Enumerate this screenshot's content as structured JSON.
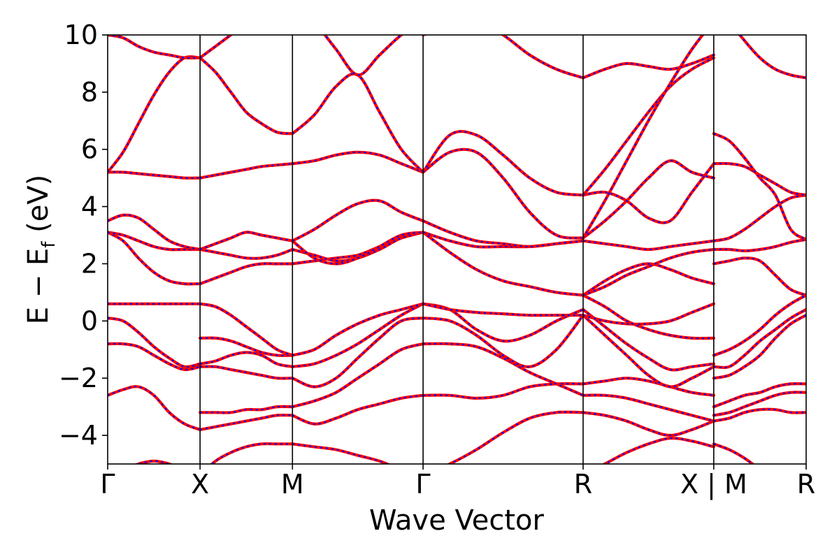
{
  "chart_data": {
    "type": "line",
    "title": "",
    "xlabel": "Wave Vector",
    "ylabel": "E − E",
    "ylabel_subscript": "f",
    "ylabel_unit": " (eV)",
    "ylim": [
      -5,
      10
    ],
    "yticks": [
      10,
      8,
      6,
      4,
      2,
      0,
      -2,
      -4
    ],
    "ytick_labels": [
      "10",
      "8",
      "6",
      "4",
      "2",
      "0",
      "−2",
      "−4"
    ],
    "kpath": [
      {
        "label": "Γ",
        "pos": 0
      },
      {
        "label": "X",
        "pos": 1.0
      },
      {
        "label": "M",
        "pos": 2.0
      },
      {
        "label": "Γ",
        "pos": 3.414
      },
      {
        "label": "R",
        "pos": 5.146
      },
      {
        "label": "X | M",
        "pos": 6.56
      },
      {
        "label": "R",
        "pos": 7.56
      }
    ],
    "grid": false,
    "legend": "none",
    "series_styles": [
      {
        "color": "#ff0000",
        "style": "solid"
      },
      {
        "color": "#0000ff",
        "style": "dashed"
      }
    ],
    "segments": [
      {
        "name": "Γ–X",
        "bands": [
          [
            -5.4,
            -5.2,
            -5.0,
            -4.9,
            -5.0,
            -5.2,
            -5.4
          ],
          [
            -2.6,
            -2.4,
            -2.3,
            -2.6,
            -3.2,
            -3.6,
            -3.8
          ],
          [
            -0.8,
            -0.8,
            -0.9,
            -1.2,
            -1.5,
            -1.7,
            -1.6
          ],
          [
            0.1,
            0.0,
            -0.4,
            -0.9,
            -1.3,
            -1.6,
            -1.5
          ],
          [
            0.6,
            0.6,
            0.6,
            0.6,
            0.6,
            0.6,
            0.6
          ],
          [
            3.1,
            2.8,
            2.2,
            1.7,
            1.4,
            1.3,
            1.3
          ],
          [
            3.1,
            3.0,
            2.8,
            2.6,
            2.5,
            2.5,
            2.5
          ],
          [
            3.5,
            3.7,
            3.6,
            3.2,
            2.8,
            2.6,
            2.5
          ],
          [
            5.2,
            5.2,
            5.15,
            5.1,
            5.05,
            5.0,
            5.0
          ],
          [
            5.2,
            5.9,
            6.9,
            7.9,
            8.7,
            9.2,
            9.2
          ],
          [
            10.0,
            9.9,
            9.6,
            9.4,
            9.3,
            9.2,
            9.2
          ]
        ]
      },
      {
        "name": "X–M",
        "bands": [
          [
            -5.4,
            -4.9,
            -4.6,
            -4.4,
            -4.3,
            -4.3,
            -4.3
          ],
          [
            -3.8,
            -3.7,
            -3.6,
            -3.5,
            -3.4,
            -3.3,
            -3.3
          ],
          [
            -3.2,
            -3.2,
            -3.2,
            -3.1,
            -3.1,
            -3.0,
            -3.0
          ],
          [
            -1.6,
            -1.6,
            -1.7,
            -1.8,
            -1.9,
            -2.0,
            -2.0
          ],
          [
            -1.5,
            -1.4,
            -1.2,
            -1.1,
            -1.2,
            -1.5,
            -1.6
          ],
          [
            -0.6,
            -0.6,
            -0.7,
            -0.9,
            -1.1,
            -1.2,
            -1.2
          ],
          [
            0.6,
            0.5,
            0.2,
            -0.2,
            -0.6,
            -1.0,
            -1.2
          ],
          [
            1.3,
            1.5,
            1.7,
            1.9,
            2.0,
            2.0,
            2.0
          ],
          [
            2.5,
            2.4,
            2.3,
            2.2,
            2.2,
            2.3,
            2.5
          ],
          [
            2.5,
            2.7,
            2.9,
            3.1,
            3.0,
            2.9,
            2.8
          ],
          [
            5.0,
            5.1,
            5.2,
            5.3,
            5.4,
            5.45,
            5.5
          ],
          [
            9.2,
            8.7,
            8.0,
            7.3,
            6.9,
            6.6,
            6.55
          ],
          [
            9.2,
            9.6,
            10.0,
            10.4,
            10.8,
            11.2,
            11.5
          ]
        ]
      },
      {
        "name": "M–Γ",
        "bands": [
          [
            -4.3,
            -4.4,
            -4.5,
            -4.7,
            -4.9,
            -5.2,
            -5.4
          ],
          [
            -3.3,
            -3.6,
            -3.4,
            -3.1,
            -2.9,
            -2.7,
            -2.6
          ],
          [
            -3.0,
            -2.8,
            -2.5,
            -2.0,
            -1.5,
            -1.0,
            -0.8
          ],
          [
            -2.0,
            -2.3,
            -2.0,
            -1.3,
            -0.6,
            0.0,
            0.1
          ],
          [
            -1.6,
            -1.5,
            -1.2,
            -0.8,
            -0.3,
            0.2,
            0.6
          ],
          [
            -1.2,
            -1.0,
            -0.5,
            -0.1,
            0.2,
            0.4,
            0.6
          ],
          [
            2.0,
            2.1,
            2.2,
            2.3,
            2.6,
            2.9,
            3.1
          ],
          [
            2.5,
            2.3,
            2.1,
            2.2,
            2.5,
            2.9,
            3.1
          ],
          [
            2.8,
            2.2,
            2.0,
            2.2,
            2.6,
            3.0,
            3.1
          ],
          [
            2.8,
            3.2,
            3.7,
            4.1,
            4.2,
            3.8,
            3.5
          ],
          [
            5.5,
            5.6,
            5.8,
            5.9,
            5.8,
            5.5,
            5.2
          ],
          [
            6.55,
            7.2,
            8.2,
            8.6,
            7.3,
            6.0,
            5.2
          ],
          [
            11.5,
            10.5,
            9.5,
            8.6,
            9.3,
            10.0,
            10.5
          ]
        ]
      },
      {
        "name": "Γ–R",
        "bands": [
          [
            -5.4,
            -5.0,
            -4.5,
            -3.9,
            -3.4,
            -3.2,
            -3.2
          ],
          [
            -2.6,
            -2.6,
            -2.7,
            -2.6,
            -2.3,
            -2.2,
            -2.2
          ],
          [
            -0.8,
            -0.8,
            -0.9,
            -1.3,
            -1.8,
            -2.2,
            -2.6
          ],
          [
            0.1,
            0.0,
            -0.5,
            -1.2,
            -1.6,
            -1.0,
            0.2
          ],
          [
            0.6,
            0.4,
            -0.3,
            -0.7,
            -0.5,
            0.0,
            0.4
          ],
          [
            0.6,
            0.4,
            0.3,
            0.25,
            0.2,
            0.2,
            0.2
          ],
          [
            3.1,
            2.4,
            1.8,
            1.4,
            1.2,
            1.0,
            0.9
          ],
          [
            3.1,
            2.8,
            2.6,
            2.6,
            2.6,
            2.7,
            2.8
          ],
          [
            3.5,
            3.1,
            2.8,
            2.7,
            2.6,
            2.7,
            2.8
          ],
          [
            5.2,
            6.5,
            6.5,
            5.8,
            5.0,
            4.5,
            4.4
          ],
          [
            5.2,
            5.9,
            5.9,
            5.0,
            3.8,
            3.0,
            2.9
          ],
          [
            10.0,
            10.3,
            10.5,
            10.0,
            9.3,
            8.8,
            8.5
          ]
        ]
      },
      {
        "name": "R–X",
        "bands": [
          [
            -5.4,
            -5.0,
            -4.6,
            -4.3,
            -4.1,
            -4.2,
            -4.4
          ],
          [
            -3.2,
            -3.3,
            -3.5,
            -3.8,
            -4.0,
            -3.8,
            -3.5
          ],
          [
            -2.6,
            -2.6,
            -2.7,
            -2.9,
            -3.1,
            -3.3,
            -3.5
          ],
          [
            -2.2,
            -2.1,
            -2.0,
            -2.1,
            -2.3,
            -2.5,
            -2.6
          ],
          [
            0.2,
            -0.5,
            -1.2,
            -1.9,
            -2.3,
            -2.0,
            -1.6
          ],
          [
            0.4,
            -0.2,
            -0.8,
            -1.3,
            -1.7,
            -1.6,
            -1.5
          ],
          [
            0.2,
            0.0,
            -0.1,
            -0.1,
            0.0,
            0.3,
            0.6
          ],
          [
            0.9,
            0.5,
            0.0,
            -0.3,
            -0.5,
            -0.6,
            -0.6
          ],
          [
            0.9,
            1.4,
            1.8,
            2.0,
            1.8,
            1.5,
            1.3
          ],
          [
            0.9,
            1.2,
            1.6,
            1.9,
            2.2,
            2.4,
            2.5
          ],
          [
            2.8,
            2.7,
            2.6,
            2.5,
            2.6,
            2.7,
            2.8
          ],
          [
            2.9,
            3.5,
            4.2,
            5.0,
            5.6,
            5.2,
            5.0
          ],
          [
            4.4,
            4.5,
            4.2,
            3.6,
            3.5,
            4.5,
            5.5
          ],
          [
            4.4,
            5.3,
            6.3,
            7.3,
            8.2,
            8.8,
            9.2
          ],
          [
            2.9,
            4.2,
            5.6,
            7.0,
            8.3,
            9.5,
            10.5
          ],
          [
            8.5,
            8.8,
            9.0,
            8.9,
            8.8,
            9.0,
            9.3
          ]
        ]
      },
      {
        "name": "M–R",
        "bands": [
          [
            -4.3,
            -4.5,
            -4.8,
            -5.2,
            -5.6,
            -5.8,
            -6.0
          ],
          [
            -3.5,
            -3.4,
            -3.2,
            -3.1,
            -3.1,
            -3.2,
            -3.2
          ],
          [
            -3.3,
            -3.2,
            -3.0,
            -2.8,
            -2.6,
            -2.5,
            -2.5
          ],
          [
            -3.0,
            -2.8,
            -2.6,
            -2.5,
            -2.3,
            -2.2,
            -2.2
          ],
          [
            -2.0,
            -1.9,
            -1.6,
            -1.2,
            -0.6,
            -0.1,
            0.2
          ],
          [
            -1.6,
            -1.6,
            -1.2,
            -0.7,
            -0.3,
            0.1,
            0.4
          ],
          [
            -1.2,
            -1.0,
            -0.7,
            -0.3,
            0.2,
            0.6,
            0.9
          ],
          [
            2.0,
            2.1,
            2.2,
            2.1,
            1.6,
            1.1,
            0.9
          ],
          [
            2.5,
            2.5,
            2.45,
            2.5,
            2.6,
            2.75,
            2.85
          ],
          [
            2.8,
            2.9,
            3.2,
            3.6,
            4.0,
            4.3,
            4.4
          ],
          [
            5.5,
            5.5,
            5.4,
            5.1,
            4.8,
            4.5,
            4.4
          ],
          [
            6.55,
            6.3,
            5.7,
            5.0,
            4.4,
            3.2,
            2.85
          ],
          [
            11.5,
            10.5,
            9.8,
            9.2,
            8.8,
            8.6,
            8.5
          ]
        ]
      }
    ]
  }
}
